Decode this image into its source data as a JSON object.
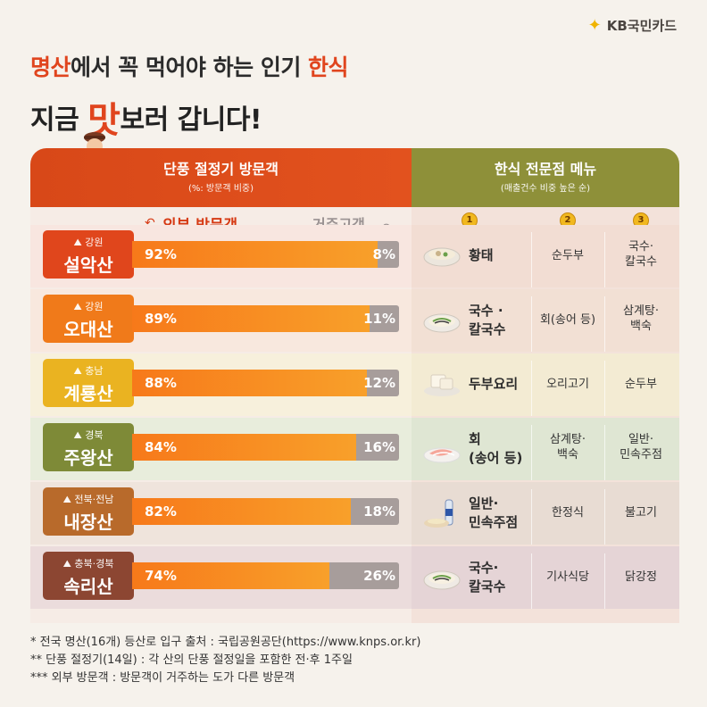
{
  "brand": {
    "name": "KB국민카드",
    "icon": "kb-star-icon"
  },
  "headline": {
    "line1_a": "명산",
    "line1_b": "에서 꼭 먹어야 하는 인기 ",
    "line1_c": "한식",
    "line2_a": "지금 ",
    "line2_b": "맛",
    "line2_c": "보러 갑니다!"
  },
  "table_header": {
    "left_title": "단풍 절정기 방문객",
    "left_sub": "(%: 방문객 비중)",
    "right_title": "한식 전문점 메뉴",
    "right_sub": "(매출건수 비중 높은 순)"
  },
  "legend": {
    "outside": "외부 방문객",
    "resident": "거주고객"
  },
  "medals": [
    "1",
    "2",
    "3"
  ],
  "colors": {
    "header_left": "#d84818",
    "header_right": "#8e9039",
    "bar_outside": "#f7791a",
    "bar_resident": "#a79d9b"
  },
  "rows": [
    {
      "region": "강원",
      "mountain": "설악산",
      "outside": 92,
      "resident": 8,
      "outside_label": "92%",
      "resident_label": "8%",
      "menu1": [
        "황태"
      ],
      "menu2": [
        "순두부"
      ],
      "menu3": [
        "국수·",
        "칼국수"
      ],
      "dish_icon": "soup-bowl-icon"
    },
    {
      "region": "강원",
      "mountain": "오대산",
      "outside": 89,
      "resident": 11,
      "outside_label": "89%",
      "resident_label": "11%",
      "menu1": [
        "국수 ·",
        "칼국수"
      ],
      "menu2": [
        "회(송어 등)"
      ],
      "menu3": [
        "삼계탕·",
        "백숙"
      ],
      "dish_icon": "noodle-bowl-icon"
    },
    {
      "region": "충남",
      "mountain": "계룡산",
      "outside": 88,
      "resident": 12,
      "outside_label": "88%",
      "resident_label": "12%",
      "menu1": [
        "두부요리"
      ],
      "menu2": [
        "오리고기"
      ],
      "menu3": [
        "순두부"
      ],
      "dish_icon": "tofu-icon"
    },
    {
      "region": "경북",
      "mountain": "주왕산",
      "outside": 84,
      "resident": 16,
      "outside_label": "84%",
      "resident_label": "16%",
      "menu1": [
        "회",
        "(송어 등)"
      ],
      "menu2": [
        "삼계탕·",
        "백숙"
      ],
      "menu3": [
        "일반·",
        "민속주점"
      ],
      "dish_icon": "sashimi-plate-icon"
    },
    {
      "region": "전북·전남",
      "mountain": "내장산",
      "outside": 82,
      "resident": 18,
      "outside_label": "82%",
      "resident_label": "18%",
      "menu1": [
        "일반·",
        "민속주점"
      ],
      "menu2": [
        "한정식"
      ],
      "menu3": [
        "불고기"
      ],
      "dish_icon": "bottle-bowl-icon"
    },
    {
      "region": "충북·경북",
      "mountain": "속리산",
      "outside": 74,
      "resident": 26,
      "outside_label": "74%",
      "resident_label": "26%",
      "menu1": [
        "국수·",
        "칼국수"
      ],
      "menu2": [
        "기사식당"
      ],
      "menu3": [
        "닭강정"
      ],
      "dish_icon": "noodle-bowl-icon"
    }
  ],
  "footnotes": [
    "* 전국 명산(16개) 등산로 입구 출처 : 국립공원공단(https://www.knps.or.kr)",
    "** 단풍 절정기(14일) : 각 산의 단풍 절정일을 포함한 전·후 1주일",
    "*** 외부 방문객 : 방문객이 거주하는 도가 다른  방문객"
  ]
}
